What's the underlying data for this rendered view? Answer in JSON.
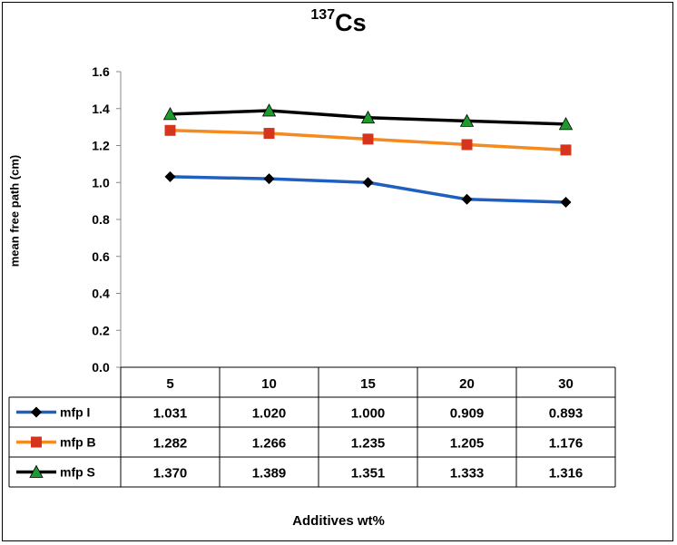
{
  "chart_data": {
    "type": "line",
    "title_sup": "137",
    "title_main": "Cs",
    "xlabel": "Additives wt%",
    "ylabel": "mean free path (cm)",
    "categories": [
      "5",
      "10",
      "15",
      "20",
      "30"
    ],
    "y_ticks": [
      "0.0",
      "0.2",
      "0.4",
      "0.6",
      "0.8",
      "1.0",
      "1.2",
      "1.4",
      "1.6"
    ],
    "ylim": [
      0,
      1.6
    ],
    "grid": false,
    "legend": "data-table-left",
    "series": [
      {
        "name": "mfp I",
        "values": [
          1.031,
          1.02,
          1.0,
          0.909,
          0.893
        ],
        "labels": [
          "1.031",
          "1.020",
          "1.000",
          "0.909",
          "0.893"
        ],
        "color": "#1f5fbf",
        "marker": "diamond",
        "marker_color": "#000000"
      },
      {
        "name": "mfp B",
        "values": [
          1.282,
          1.266,
          1.235,
          1.205,
          1.176
        ],
        "labels": [
          "1.282",
          "1.266",
          "1.235",
          "1.205",
          "1.176"
        ],
        "color": "#f58a1f",
        "marker": "square",
        "marker_color": "#d4351c"
      },
      {
        "name": "mfp S",
        "values": [
          1.37,
          1.389,
          1.351,
          1.333,
          1.316
        ],
        "labels": [
          "1.370",
          "1.389",
          "1.351",
          "1.333",
          "1.316"
        ],
        "color": "#000000",
        "marker": "triangle",
        "marker_color": "#1f9a2e"
      }
    ]
  }
}
